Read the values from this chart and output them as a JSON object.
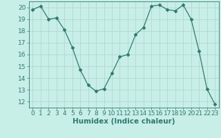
{
  "x": [
    0,
    1,
    2,
    3,
    4,
    5,
    6,
    7,
    8,
    9,
    10,
    11,
    12,
    13,
    14,
    15,
    16,
    17,
    18,
    19,
    20,
    21,
    22,
    23
  ],
  "y": [
    19.8,
    20.1,
    19.0,
    19.1,
    18.1,
    16.6,
    14.7,
    13.4,
    12.9,
    13.1,
    14.4,
    15.8,
    16.0,
    17.7,
    18.3,
    20.1,
    20.2,
    19.8,
    19.7,
    20.2,
    19.0,
    16.3,
    13.1,
    11.8
  ],
  "line_color": "#2d7a6e",
  "marker": "D",
  "marker_size": 2.5,
  "bg_color": "#c8eee8",
  "grid_color": "#b0d8d0",
  "xlabel": "Humidex (Indice chaleur)",
  "xlim": [
    -0.5,
    23.5
  ],
  "ylim": [
    11.5,
    20.5
  ],
  "yticks": [
    12,
    13,
    14,
    15,
    16,
    17,
    18,
    19,
    20
  ],
  "xticks": [
    0,
    1,
    2,
    3,
    4,
    5,
    6,
    7,
    8,
    9,
    10,
    11,
    12,
    13,
    14,
    15,
    16,
    17,
    18,
    19,
    20,
    21,
    22,
    23
  ],
  "tick_color": "#2d7a6e",
  "label_color": "#2d7a6e",
  "font_size": 6.5,
  "xlabel_fontsize": 7.5
}
